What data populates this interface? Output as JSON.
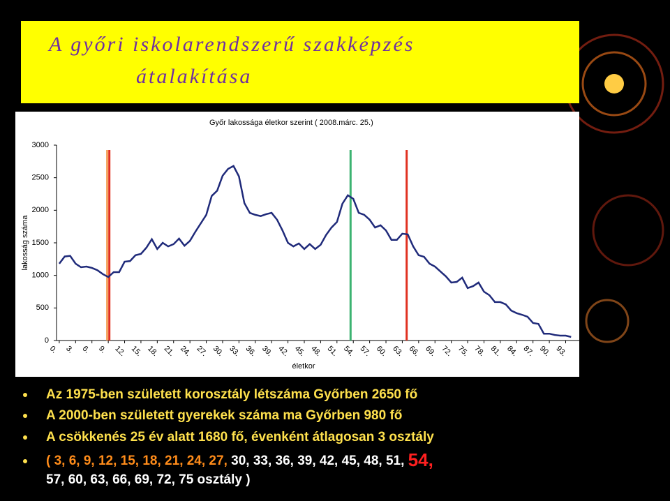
{
  "header": {
    "title": [
      "A győri iskolarendszerű szakképzés",
      "átalakítása"
    ]
  },
  "chart_data": {
    "type": "line",
    "title": "Győr lakossága életkor szerint ( 2008.márc. 25.)",
    "xlabel": "életkor",
    "ylabel": "lakosság száma",
    "x": [
      0,
      1,
      2,
      3,
      4,
      5,
      6,
      7,
      8,
      9,
      10,
      11,
      12,
      13,
      14,
      15,
      16,
      17,
      18,
      19,
      20,
      21,
      22,
      23,
      24,
      25,
      26,
      27,
      28,
      29,
      30,
      31,
      32,
      33,
      34,
      35,
      36,
      37,
      38,
      39,
      40,
      41,
      42,
      43,
      44,
      45,
      46,
      47,
      48,
      49,
      50,
      51,
      52,
      53,
      54,
      55,
      56,
      57,
      58,
      59,
      60,
      61,
      62,
      63,
      64,
      65,
      66,
      67,
      68,
      69,
      70,
      71,
      72,
      73,
      74,
      75,
      76,
      77,
      78,
      79,
      80,
      81,
      82,
      83,
      84,
      85,
      86,
      87,
      88,
      89,
      90,
      91,
      92,
      93,
      94
    ],
    "series": [
      {
        "name": "lakosság",
        "color": "#1f2a7a",
        "values": [
          1180,
          1290,
          1300,
          1180,
          1125,
          1135,
          1115,
          1080,
          1020,
          975,
          1050,
          1050,
          1210,
          1220,
          1310,
          1330,
          1425,
          1555,
          1405,
          1500,
          1445,
          1480,
          1565,
          1455,
          1530,
          1670,
          1800,
          1930,
          2220,
          2300,
          2530,
          2635,
          2680,
          2520,
          2110,
          1960,
          1930,
          1910,
          1940,
          1960,
          1855,
          1690,
          1500,
          1445,
          1490,
          1405,
          1480,
          1405,
          1470,
          1620,
          1735,
          1820,
          2100,
          2230,
          2175,
          1960,
          1930,
          1855,
          1735,
          1770,
          1690,
          1545,
          1545,
          1640,
          1630,
          1445,
          1310,
          1285,
          1180,
          1135,
          1060,
          985,
          890,
          900,
          965,
          805,
          835,
          890,
          750,
          695,
          590,
          590,
          555,
          460,
          420,
          395,
          365,
          270,
          255,
          105,
          105,
          85,
          75,
          75,
          55
        ]
      }
    ],
    "xlim": [
      -0.5,
      95.5
    ],
    "ylim": [
      0,
      3000
    ],
    "xticks": [
      {
        "value": 0,
        "label": "0."
      },
      {
        "value": 3,
        "label": "3."
      },
      {
        "value": 6,
        "label": "6."
      },
      {
        "value": 9,
        "label": "9."
      },
      {
        "value": 12,
        "label": "12."
      },
      {
        "value": 15,
        "label": "15."
      },
      {
        "value": 18,
        "label": "18."
      },
      {
        "value": 21,
        "label": "21."
      },
      {
        "value": 24,
        "label": "24."
      },
      {
        "value": 27,
        "label": "27."
      },
      {
        "value": 30,
        "label": "30."
      },
      {
        "value": 33,
        "label": "33."
      },
      {
        "value": 36,
        "label": "36."
      },
      {
        "value": 39,
        "label": "39."
      },
      {
        "value": 42,
        "label": "42."
      },
      {
        "value": 45,
        "label": "45."
      },
      {
        "value": 48,
        "label": "48."
      },
      {
        "value": 51,
        "label": "51."
      },
      {
        "value": 54,
        "label": "54."
      },
      {
        "value": 57,
        "label": "57."
      },
      {
        "value": 60,
        "label": "60."
      },
      {
        "value": 63,
        "label": "63."
      },
      {
        "value": 66,
        "label": "66."
      },
      {
        "value": 69,
        "label": "69."
      },
      {
        "value": 72,
        "label": "72."
      },
      {
        "value": 75,
        "label": "75."
      },
      {
        "value": 78,
        "label": "78."
      },
      {
        "value": 81,
        "label": "81."
      },
      {
        "value": 84,
        "label": "84."
      },
      {
        "value": 87,
        "label": "87."
      },
      {
        "value": 90,
        "label": "90."
      },
      {
        "value": 93,
        "label": "93."
      }
    ],
    "yticks": [
      0,
      500,
      1000,
      1500,
      2000,
      2500,
      3000
    ],
    "vlines": [
      {
        "x": 8.8,
        "color": "#f4a460"
      },
      {
        "x": 9.2,
        "color": "#e03020"
      },
      {
        "x": 53.5,
        "color": "#3cb371"
      },
      {
        "x": 63.8,
        "color": "#e03020"
      }
    ]
  },
  "bullets": [
    "Az 1975-ben született korosztály létszáma Győrben 2650 fő",
    "A 2000-ben  született gyerekek száma  ma Győrben   980 fő",
    "A csökkenés 25 év alatt 1680 fő, évenként átlagosan 3 osztály",
    [
      "( 3, 6, 9, 12, 15, 18, 21, 24, 27,",
      " 30, 33, 36, 39, 42, 45, 48, 51, ",
      "54,",
      "57, 60, 63, 66, 69, 72, 75 osztály )"
    ]
  ]
}
